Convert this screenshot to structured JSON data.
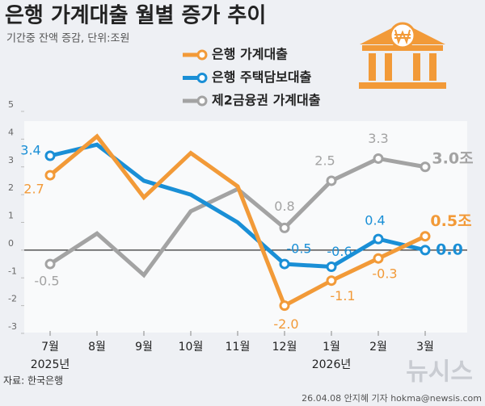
{
  "chart_data": {
    "type": "line",
    "title": "은행 가계대출 월별 증가 추이",
    "subtitle": "기간중 잔액 증감, 단위:조원",
    "categories": [
      "7월",
      "8월",
      "9월",
      "10월",
      "11월",
      "12월",
      "1월",
      "2월",
      "3월"
    ],
    "years": [
      "2025년",
      null,
      null,
      null,
      null,
      null,
      "2026년",
      null,
      null
    ],
    "series": [
      {
        "name": "은행 가계대출",
        "color": "#f29a38",
        "values": [
          2.7,
          4.1,
          1.9,
          3.5,
          2.3,
          -2.0,
          -1.1,
          -0.3,
          0.5
        ],
        "value_labels": [
          "2.7",
          null,
          null,
          null,
          null,
          "-2.0",
          "-1.1",
          "-0.3",
          "0.5조"
        ]
      },
      {
        "name": "은행 주택담보대출",
        "color": "#1a8fd6",
        "values": [
          3.4,
          3.8,
          2.5,
          2.0,
          1.0,
          -0.5,
          -0.6,
          0.4,
          0.0
        ],
        "value_labels": [
          "3.4",
          null,
          null,
          null,
          null,
          "-0.5",
          "-0.6",
          "0.4",
          "0.0"
        ]
      },
      {
        "name": "제2금융권 가계대출",
        "color": "#a3a3a3",
        "values": [
          -0.5,
          0.6,
          -0.9,
          1.4,
          2.2,
          0.8,
          2.5,
          3.3,
          3.0
        ],
        "value_labels": [
          "-0.5",
          null,
          null,
          null,
          null,
          "0.8",
          "2.5",
          "3.3",
          "3.0조"
        ]
      }
    ],
    "ylim": [
      -3,
      5
    ],
    "yticks": [
      5,
      4,
      3,
      2,
      1,
      0,
      -1,
      -2,
      -3
    ],
    "grid": false,
    "source": "자료: 한국은행",
    "credit": "26.04.08 안지혜 기자 hokma@newsis.com",
    "watermark": "뉴시스"
  }
}
